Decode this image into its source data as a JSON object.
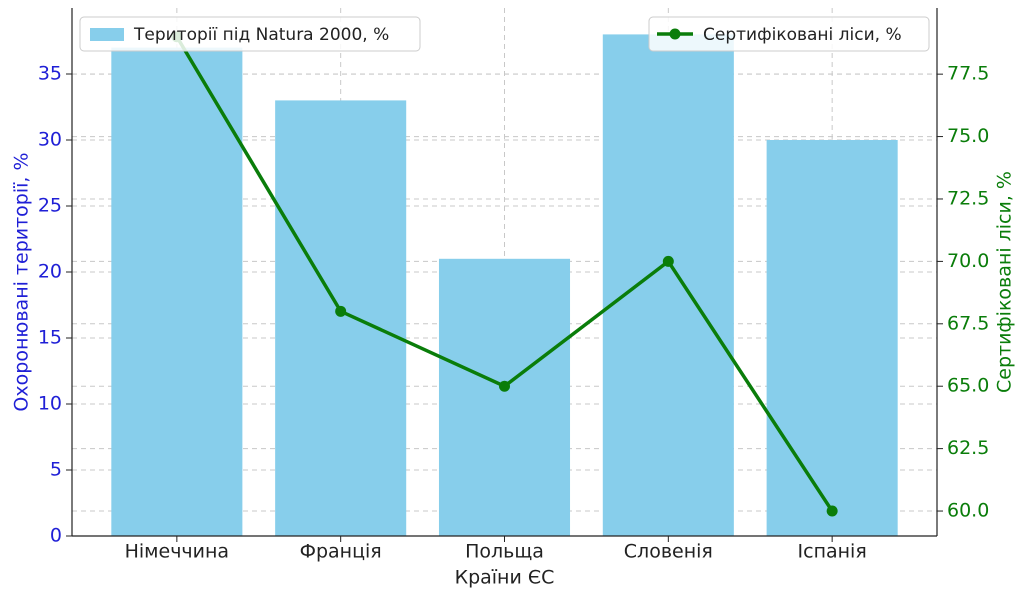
{
  "chart_data": {
    "type": "bar",
    "xlabel": "Країни ЄС",
    "ylabel": "Охоронювані території, %",
    "y2label": "Сертифіковані ліси, %",
    "categories": [
      "Німеччина",
      "Франція",
      "Польща",
      "Словенія",
      "Іспанія"
    ],
    "series": [
      {
        "name": "Території під Natura 2000, %",
        "type": "bar",
        "color": "#87ceeb",
        "values": [
          37,
          33,
          21,
          38,
          30
        ]
      },
      {
        "name": "Сертифіковані ліси, %",
        "type": "line",
        "axis": "y2",
        "color": "#0a7d0a",
        "values": [
          79,
          68,
          65,
          70,
          60
        ]
      }
    ],
    "ylim": [
      0,
      40
    ],
    "yticks": [
      0,
      5,
      10,
      15,
      20,
      25,
      30,
      35
    ],
    "y2lim": [
      59,
      80.15
    ],
    "y2ticks": [
      {
        "value": 60,
        "label": "60.0"
      },
      {
        "value": 62.5,
        "label": "62.5"
      },
      {
        "value": 65,
        "label": "65.0"
      },
      {
        "value": 67.5,
        "label": "67.5"
      },
      {
        "value": 70,
        "label": "70.0"
      },
      {
        "value": 72.5,
        "label": "72.5"
      },
      {
        "value": 75,
        "label": "75.0"
      },
      {
        "value": 77.5,
        "label": "77.5"
      }
    ],
    "ycolor": "#1f1fd6",
    "y2color": "#0a7d0a",
    "grid": true,
    "legend": [
      "upper left",
      "upper right"
    ]
  }
}
